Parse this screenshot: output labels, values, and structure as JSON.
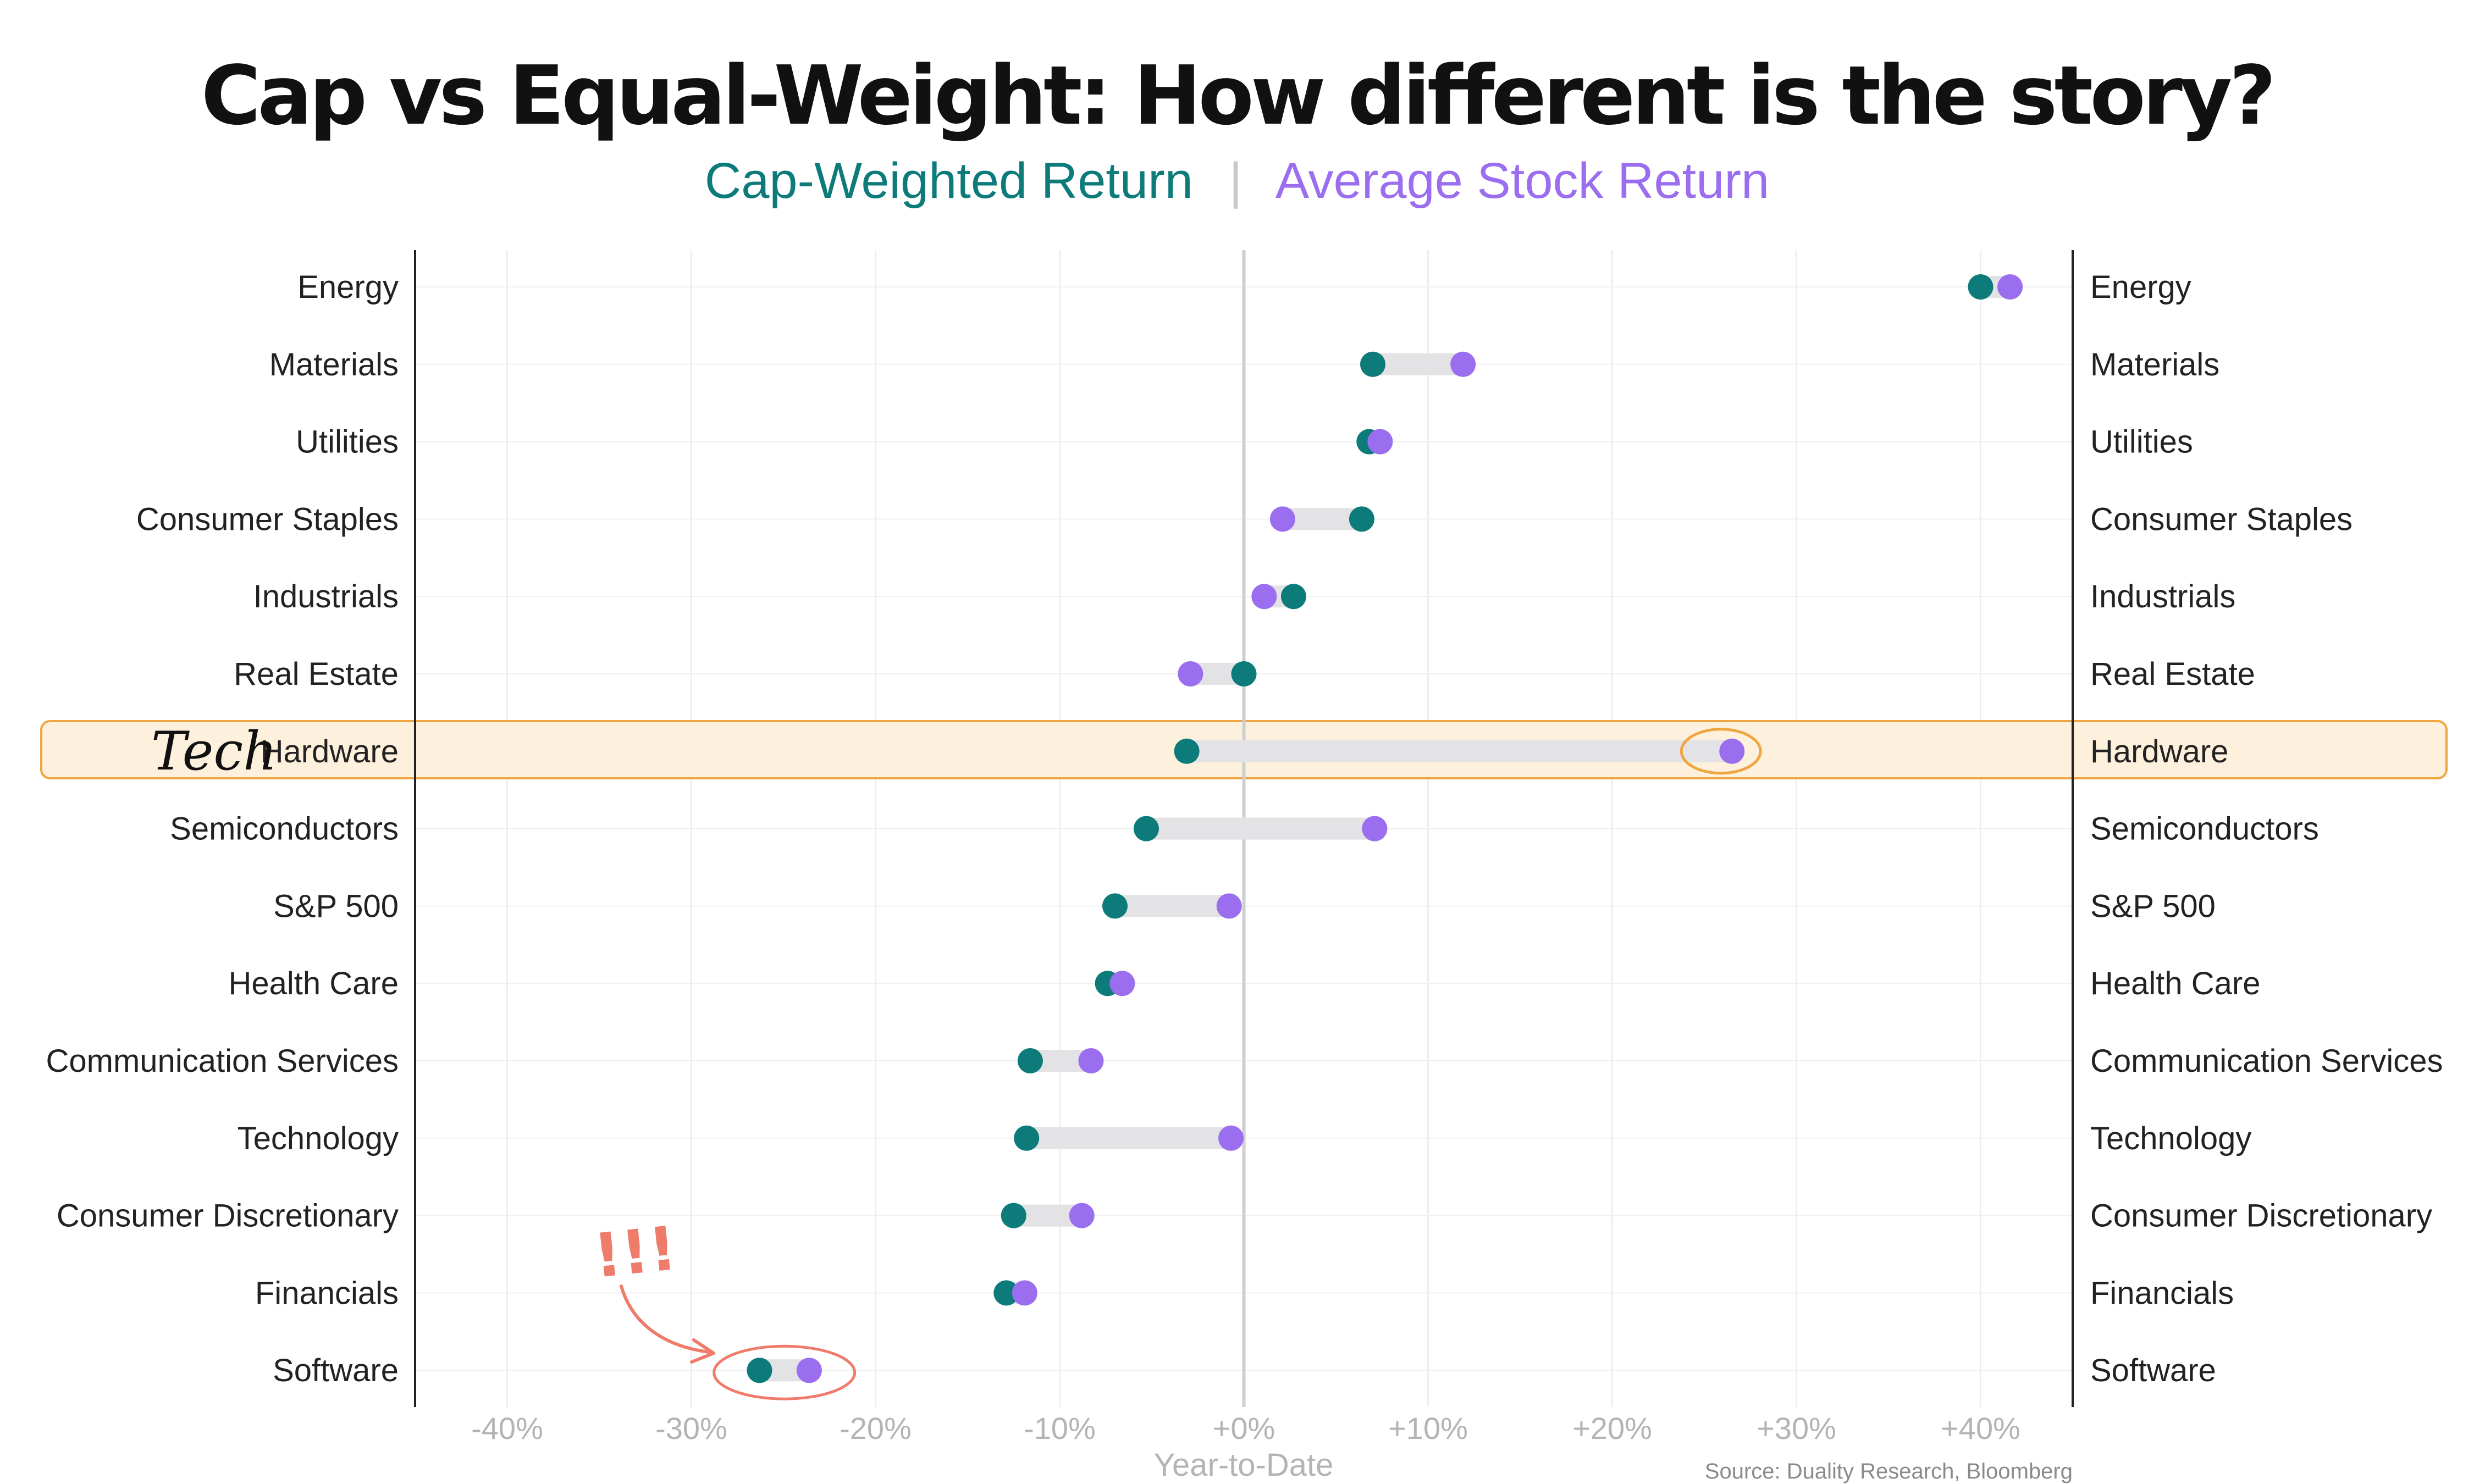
{
  "title": "Cap vs Equal-Weight: How different is the story?",
  "legend": {
    "cap_label": "Cap-Weighted Return",
    "separator": "|",
    "avg_label": "Average Stock Return",
    "cap_color": "#0e7b7b",
    "avg_color": "#9b6ef0"
  },
  "source": "Source: Duality Research, Bloomberg",
  "annotations": {
    "tech_note": "Tech",
    "software_note": "!!!",
    "highlight_category": "Hardware",
    "highlight_fill": "#fdf0dc",
    "highlight_stroke": "#f0a640",
    "circle_software_color": "#ef7b6a"
  },
  "chart_data": {
    "type": "dumbbell",
    "title": "Cap vs Equal-Weight: How different is the story?",
    "xlabel": "Year-to-Date",
    "ylabel": "",
    "xlim": [
      -45,
      45
    ],
    "x_ticks": [
      -40,
      -30,
      -20,
      -10,
      0,
      10,
      20,
      30,
      40
    ],
    "x_tick_labels": [
      "-40%",
      "-30%",
      "-20%",
      "-10%",
      "+0%",
      "+10%",
      "+20%",
      "+30%",
      "+40%"
    ],
    "grid": true,
    "categories": [
      "Energy",
      "Materials",
      "Utilities",
      "Consumer Staples",
      "Industrials",
      "Real Estate",
      "Hardware",
      "Semiconductors",
      "S&P 500",
      "Health Care",
      "Communication Services",
      "Technology",
      "Consumer Discretionary",
      "Financials",
      "Software"
    ],
    "series": [
      {
        "name": "Cap-Weighted Return",
        "color": "#0e7b7b",
        "values": [
          40.0,
          7.0,
          6.8,
          6.4,
          2.7,
          0.0,
          -3.1,
          -5.3,
          -7.0,
          -7.4,
          -11.6,
          -11.8,
          -12.5,
          -12.9,
          -26.3
        ]
      },
      {
        "name": "Average Stock Return",
        "color": "#9b6ef0",
        "values": [
          41.6,
          11.9,
          7.4,
          2.1,
          1.1,
          -2.9,
          26.5,
          7.1,
          -0.8,
          -6.6,
          -8.3,
          -0.7,
          -8.8,
          -11.9,
          -23.6
        ]
      }
    ]
  }
}
